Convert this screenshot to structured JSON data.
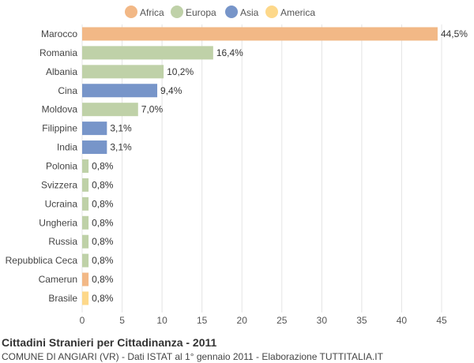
{
  "chart_data": {
    "type": "bar",
    "orientation": "horizontal",
    "title": "Cittadini Stranieri per Cittadinanza - 2011",
    "subtitle": "COMUNE DI ANGIARI (VR) - Dati ISTAT al 1° gennaio 2011 - Elaborazione TUTTITALIA.IT",
    "legend": [
      {
        "name": "Africa",
        "color": "#f2b886"
      },
      {
        "name": "Europa",
        "color": "#bfd1a8"
      },
      {
        "name": "Asia",
        "color": "#7795c9"
      },
      {
        "name": "America",
        "color": "#fdd88a"
      }
    ],
    "legend_position": "top",
    "categories": [
      "Marocco",
      "Romania",
      "Albania",
      "Cina",
      "Moldova",
      "Filippine",
      "India",
      "Polonia",
      "Svizzera",
      "Ucraina",
      "Ungheria",
      "Russia",
      "Repubblica Ceca",
      "Camerun",
      "Brasile"
    ],
    "values": [
      44.5,
      16.4,
      10.2,
      9.4,
      7.0,
      3.1,
      3.1,
      0.8,
      0.8,
      0.8,
      0.8,
      0.8,
      0.8,
      0.8,
      0.8
    ],
    "value_labels": [
      "44,5%",
      "16,4%",
      "10,2%",
      "9,4%",
      "7,0%",
      "3,1%",
      "3,1%",
      "0,8%",
      "0,8%",
      "0,8%",
      "0,8%",
      "0,8%",
      "0,8%",
      "0,8%",
      "0,8%"
    ],
    "groups": [
      "Africa",
      "Europa",
      "Europa",
      "Asia",
      "Europa",
      "Asia",
      "Asia",
      "Europa",
      "Europa",
      "Europa",
      "Europa",
      "Europa",
      "Europa",
      "Africa",
      "America"
    ],
    "xlim": [
      0,
      45
    ],
    "xticks": [
      0,
      5,
      10,
      15,
      20,
      25,
      30,
      35,
      40,
      45
    ],
    "grid": true
  }
}
